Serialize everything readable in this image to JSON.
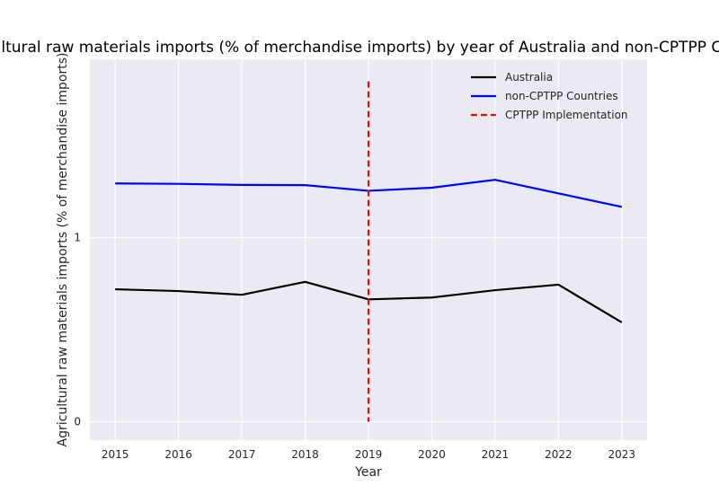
{
  "chart_data": {
    "type": "line",
    "title": "Agricultural raw materials imports (% of merchandise imports) by year of Australia and non-CPTPP Countries",
    "xlabel": "Year",
    "ylabel": "Agricultural raw materials imports (% of merchandise imports)",
    "x": [
      2015,
      2016,
      2017,
      2018,
      2019,
      2020,
      2021,
      2022,
      2023
    ],
    "xlim": [
      2014.6,
      2023.4
    ],
    "ylim": [
      -0.1,
      1.97
    ],
    "yticks": [
      0,
      1
    ],
    "grid": true,
    "legend_position": "top-right",
    "background": "#eaeaf2",
    "series": [
      {
        "name": "Australia",
        "color": "#000000",
        "style": "solid",
        "values": [
          0.72,
          0.71,
          0.69,
          0.76,
          0.665,
          0.675,
          0.715,
          0.745,
          0.54
        ]
      },
      {
        "name": "non-CPTPP Countries",
        "color": "#0000ff",
        "style": "solid",
        "values": [
          1.295,
          1.293,
          1.287,
          1.286,
          1.255,
          1.272,
          1.315,
          1.241,
          1.168
        ]
      }
    ],
    "annotations": [
      {
        "name": "CPTPP Implementation",
        "type": "vline",
        "x": 2019,
        "y_range": [
          0,
          1.85
        ],
        "color": "#ff0000",
        "style": "dashed"
      }
    ]
  }
}
